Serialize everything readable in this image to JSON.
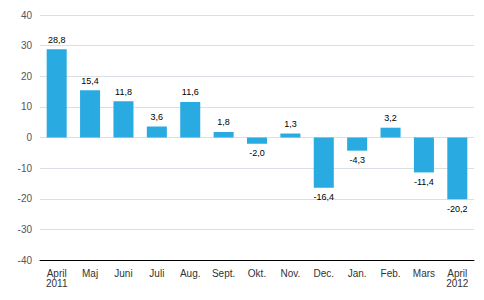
{
  "chart_data": {
    "type": "bar",
    "categories": [
      "April\n2011",
      "Maj",
      "Juni",
      "Juli",
      "Aug.",
      "Sept.",
      "Okt.",
      "Nov.",
      "Dec.",
      "Jan.",
      "Feb.",
      "Mars",
      "April\n2012"
    ],
    "values": [
      28.8,
      15.4,
      11.8,
      3.6,
      11.6,
      1.8,
      -2.0,
      1.3,
      -16.4,
      -4.3,
      3.2,
      -11.4,
      -20.2
    ],
    "value_labels": [
      "28,8",
      "15,4",
      "11,8",
      "3,6",
      "11,6",
      "1,8",
      "-2,0",
      "1,3",
      "-16,4",
      "-4,3",
      "3,2",
      "-11,4",
      "-20,2"
    ],
    "color": "#29ABE2",
    "ylim": [
      -40,
      40
    ],
    "yticks": [
      -40,
      -30,
      -20,
      -10,
      0,
      10,
      20,
      30,
      40
    ],
    "grid": true,
    "data_labels": true
  }
}
